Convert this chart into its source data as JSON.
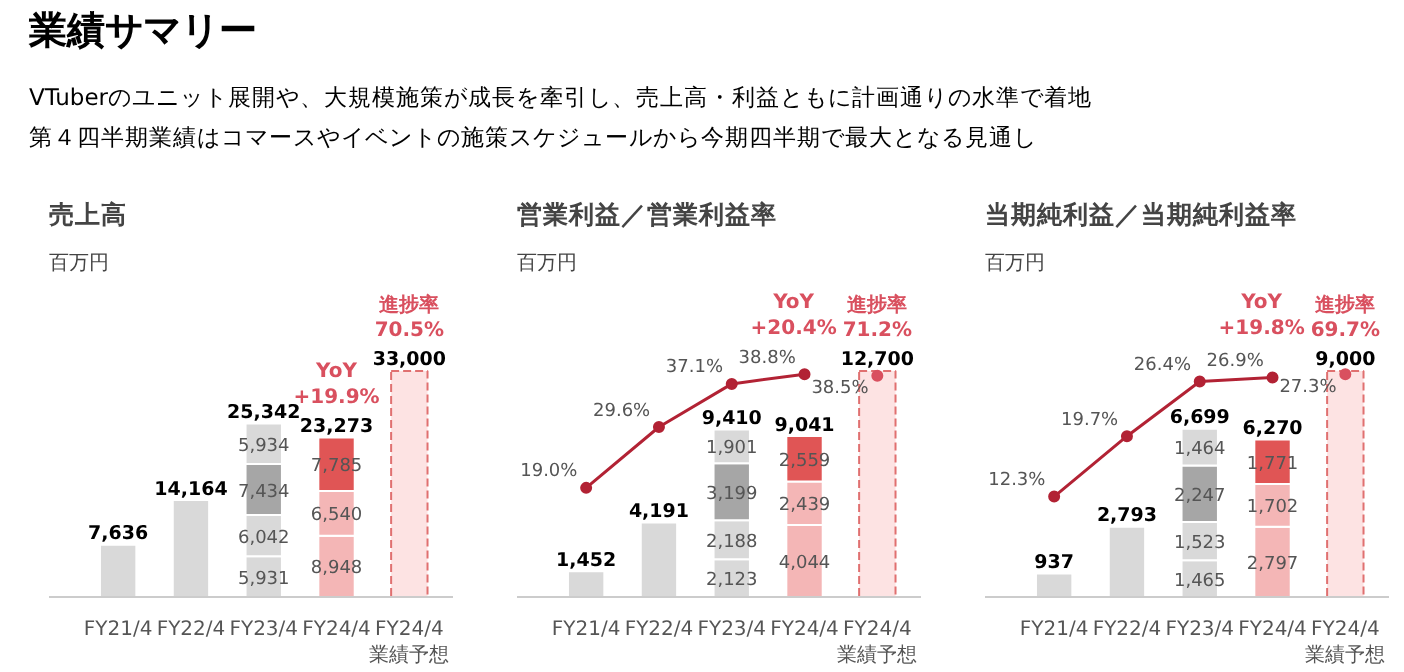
{
  "chart_data": [
    {
      "type": "other",
      "title": "業績サマリー",
      "annotations": [
        "VTuberのユニット展開や、大規模施策が成長を牽引し、売上高・利益ともに計画通りの水準で着地",
        "第４四半期業績はコマースやイベントの施策スケジュールから今期四半期で最大となる見通し"
      ]
    },
    {
      "type": "bar",
      "stacked": true,
      "title": "売上高",
      "subtitle": "百万円",
      "tick_labels": "x",
      "grid": false,
      "categories": [
        "FY21/4",
        "FY22/4",
        "FY23/4",
        "FY24/4",
        "FY24/4\n業績予想"
      ],
      "series": [
        {
          "colors": [
            "#d9d9d9",
            "#d9d9d9",
            "#d9d9d9",
            "#f4b6b6",
            "#d9d9d9"
          ],
          "values": [
            7636,
            14164,
            5931,
            8948,
            null
          ],
          "value_labels": [
            null,
            null,
            "5,931",
            "8,948",
            null
          ]
        },
        {
          "colors": [
            "#d9d9d9",
            "#d9d9d9",
            "#d9d9d9",
            "#f4b6b6",
            "#d9d9d9"
          ],
          "values": [
            null,
            null,
            6042,
            6540,
            null
          ],
          "value_labels": [
            null,
            null,
            "6,042",
            "6,540",
            null
          ]
        },
        {
          "colors": [
            "#a6a6a6",
            "#a6a6a6",
            "#a6a6a6",
            "#e05555",
            "#a6a6a6"
          ],
          "values": [
            null,
            null,
            7434,
            7785,
            null
          ],
          "value_labels": [
            null,
            null,
            "7,434",
            "7,785",
            null
          ]
        },
        {
          "colors": [
            "#d9d9d9",
            "#d9d9d9",
            "#d9d9d9",
            "#d9d9d9",
            "#d9d9d9"
          ],
          "values": [
            null,
            null,
            5934,
            null,
            null
          ],
          "value_labels": [
            null,
            null,
            "5,934",
            null,
            null
          ]
        },
        {
          "color": "#fde3e3",
          "line_style": "dashed",
          "values": [
            null,
            null,
            null,
            null,
            33000
          ]
        }
      ],
      "totals": [
        "7,636",
        "14,164",
        "25,342",
        "23,273",
        "33,000"
      ],
      "annotations": [
        {
          "text": "YoY\n+19.9%",
          "x": "FY24/4",
          "y": 23273
        },
        {
          "text": "進捗率\n70.5%",
          "x": "FY24/4\n業績予想",
          "y": 33000
        }
      ]
    },
    {
      "type": "bar",
      "stacked": true,
      "title": "営業利益／営業利益率",
      "subtitle": "百万円",
      "tick_labels": "x",
      "grid": false,
      "categories": [
        "FY21/4",
        "FY22/4",
        "FY23/4",
        "FY24/4",
        "FY24/4\n業績予想"
      ],
      "series": [
        {
          "colors": [
            "#d9d9d9",
            "#d9d9d9",
            "#d9d9d9",
            "#f4b6b6",
            "#d9d9d9"
          ],
          "values": [
            1452,
            4191,
            2123,
            4044,
            null
          ],
          "value_labels": [
            null,
            null,
            "2,123",
            "4,044",
            null
          ]
        },
        {
          "colors": [
            "#d9d9d9",
            "#d9d9d9",
            "#d9d9d9",
            "#f4b6b6",
            "#d9d9d9"
          ],
          "values": [
            null,
            null,
            2188,
            2439,
            null
          ],
          "value_labels": [
            null,
            null,
            "2,188",
            "2,439",
            null
          ]
        },
        {
          "colors": [
            "#a6a6a6",
            "#a6a6a6",
            "#a6a6a6",
            "#e05555",
            "#a6a6a6"
          ],
          "values": [
            null,
            null,
            3199,
            2559,
            null
          ],
          "value_labels": [
            null,
            null,
            "3,199",
            "2,559",
            null
          ]
        },
        {
          "colors": [
            "#d9d9d9",
            "#d9d9d9",
            "#d9d9d9",
            "#d9d9d9",
            "#d9d9d9"
          ],
          "values": [
            null,
            null,
            1901,
            null,
            null
          ],
          "value_labels": [
            null,
            null,
            "1,901",
            null,
            null
          ]
        },
        {
          "color": "#fde3e3",
          "line_style": "dashed",
          "values": [
            null,
            null,
            null,
            null,
            12700
          ]
        },
        {
          "type": "line",
          "axis": "y2",
          "color": "#b22234",
          "marker": "circle",
          "values": [
            19.0,
            29.6,
            37.1,
            38.8,
            null
          ],
          "value_labels": [
            "19.0%",
            "29.6%",
            "37.1%",
            "38.8%",
            null
          ]
        },
        {
          "type": "scatter",
          "axis": "y2",
          "color": "#d9505f",
          "marker": "circle",
          "values": [
            null,
            null,
            null,
            null,
            38.5
          ],
          "value_labels": [
            null,
            null,
            null,
            null,
            "38.5%"
          ]
        }
      ],
      "totals": [
        "1,452",
        "4,191",
        "9,410",
        "9,041",
        "12,700"
      ],
      "annotations": [
        "YoY\n+20.4%",
        {
          "text": "進捗率\n71.2%",
          "x": "FY24/4\n業績予想",
          "y": 12700
        }
      ]
    },
    {
      "type": "bar",
      "stacked": true,
      "title": "当期純利益／当期純利益率",
      "subtitle": "百万円",
      "tick_labels": "x",
      "grid": false,
      "categories": [
        "FY21/4",
        "FY22/4",
        "FY23/4",
        "FY24/4",
        "FY24/4\n業績予想"
      ],
      "series": [
        {
          "colors": [
            "#d9d9d9",
            "#d9d9d9",
            "#d9d9d9",
            "#f4b6b6",
            "#d9d9d9"
          ],
          "values": [
            937,
            2793,
            1465,
            2797,
            null
          ],
          "value_labels": [
            null,
            null,
            "1,465",
            "2,797",
            null
          ]
        },
        {
          "colors": [
            "#d9d9d9",
            "#d9d9d9",
            "#d9d9d9",
            "#f4b6b6",
            "#d9d9d9"
          ],
          "values": [
            null,
            null,
            1523,
            1702,
            null
          ],
          "value_labels": [
            null,
            null,
            "1,523",
            "1,702",
            null
          ]
        },
        {
          "colors": [
            "#a6a6a6",
            "#a6a6a6",
            "#a6a6a6",
            "#e05555",
            "#a6a6a6"
          ],
          "values": [
            null,
            null,
            2247,
            1771,
            null
          ],
          "value_labels": [
            null,
            null,
            "2,247",
            "1,771",
            null
          ]
        },
        {
          "colors": [
            "#d9d9d9",
            "#d9d9d9",
            "#d9d9d9",
            "#d9d9d9",
            "#d9d9d9"
          ],
          "values": [
            null,
            null,
            1464,
            null,
            null
          ],
          "value_labels": [
            null,
            null,
            "1,464",
            null,
            null
          ]
        },
        {
          "color": "#fde3e3",
          "line_style": "dashed",
          "values": [
            null,
            null,
            null,
            null,
            9000
          ]
        },
        {
          "type": "line",
          "axis": "y2",
          "color": "#b22234",
          "marker": "circle",
          "values": [
            12.3,
            19.7,
            26.4,
            26.9,
            null
          ],
          "value_labels": [
            "12.3%",
            "19.7%",
            "26.4%",
            "26.9%",
            null
          ]
        },
        {
          "type": "scatter",
          "axis": "y2",
          "color": "#d9505f",
          "marker": "circle",
          "values": [
            null,
            null,
            null,
            null,
            27.3
          ],
          "value_labels": [
            null,
            null,
            null,
            null,
            "27.3%"
          ]
        }
      ],
      "totals": [
        "937",
        "2,793",
        "6,699",
        "6,270",
        "9,000"
      ],
      "annotations": [
        "YoY\n+19.8%",
        {
          "text": "進捗率\n69.7%",
          "x": "FY24/4\n業績予想",
          "y": 9000
        }
      ]
    }
  ]
}
